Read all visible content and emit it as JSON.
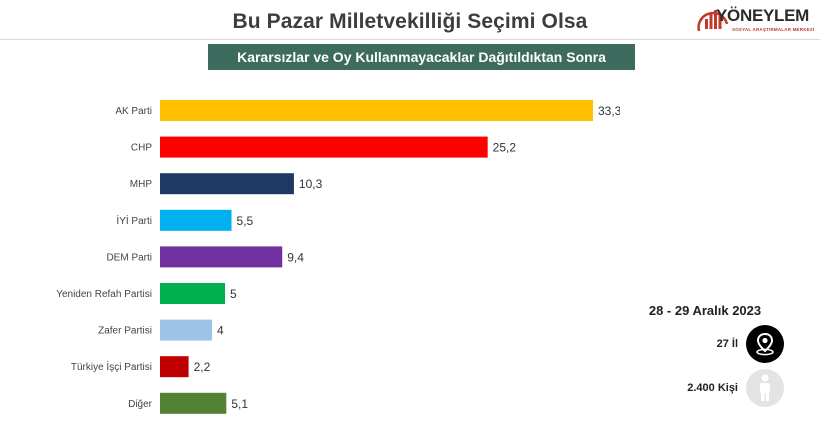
{
  "header": {
    "title": "Bu Pazar Milletvekilliği Seçimi Olsa",
    "subtitle": "Kararsızlar ve Oy Kullanmayacaklar Dağıtıldıktan Sonra"
  },
  "logo": {
    "name": "YÖNEYLEM",
    "tagline": "SOSYAL ARAŞTIRMALAR MERKEZİ"
  },
  "info": {
    "date": "28 - 29 Aralık 2023",
    "provinces": "27 İl",
    "people": "2.400 Kişi",
    "provinces_icon": "location-pin-icon",
    "people_icon": "person-icon"
  },
  "chart_data": {
    "type": "bar",
    "orientation": "horizontal",
    "categories": [
      "AK Parti",
      "CHP",
      "MHP",
      "İYİ Parti",
      "DEM Parti",
      "Yeniden Refah Partisi",
      "Zafer Partisi",
      "Türkiye İşçi Partisi",
      "Diğer"
    ],
    "values": [
      33.3,
      25.2,
      10.3,
      5.5,
      9.4,
      5,
      4,
      2.2,
      5.1
    ],
    "value_labels": [
      "33,3",
      "25,2",
      "10,3",
      "5,5",
      "9,4",
      "5",
      "4",
      "2,2",
      "5,1"
    ],
    "colors": [
      "#ffc000",
      "#ff0000",
      "#1f3864",
      "#00b0f0",
      "#7030a0",
      "#00b050",
      "#9dc3e6",
      "#c00000",
      "#548235"
    ],
    "xlim": [
      0,
      35
    ],
    "grid": false
  }
}
